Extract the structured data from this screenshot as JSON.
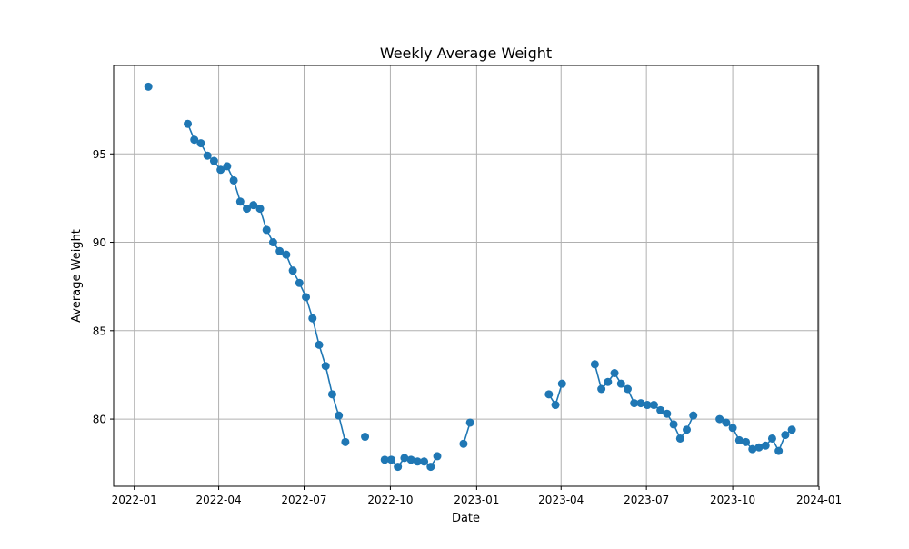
{
  "chart_data": {
    "type": "line",
    "title": "Weekly Average Weight",
    "xlabel": "Date",
    "ylabel": "Average Weight",
    "xlim": [
      "2021-12-10",
      "2023-12-31"
    ],
    "ylim": [
      76.2,
      100.0
    ],
    "x_ticks": [
      "2022-01-01",
      "2022-04-01",
      "2022-07-01",
      "2022-10-01",
      "2023-01-01",
      "2023-04-01",
      "2023-07-01",
      "2023-10-01",
      "2024-01-01"
    ],
    "x_tick_labels": [
      "2022-01",
      "2022-04",
      "2022-07",
      "2022-10",
      "2023-01",
      "2023-04",
      "2023-07",
      "2023-10",
      "2024-01"
    ],
    "y_ticks": [
      80,
      85,
      90,
      95
    ],
    "y_tick_labels": [
      "80",
      "85",
      "90",
      "95"
    ],
    "grid": true,
    "color": "#1f77b4",
    "series": [
      {
        "points": [
          [
            "2022-01-16",
            98.8
          ],
          [
            "2022-02-27",
            96.7
          ],
          [
            "2022-03-06",
            95.8
          ],
          [
            "2022-03-13",
            95.6
          ],
          [
            "2022-03-20",
            94.9
          ],
          [
            "2022-03-27",
            94.6
          ],
          [
            "2022-04-03",
            94.1
          ],
          [
            "2022-04-10",
            94.3
          ],
          [
            "2022-04-17",
            93.5
          ],
          [
            "2022-04-24",
            92.3
          ],
          [
            "2022-05-01",
            91.9
          ],
          [
            "2022-05-08",
            92.1
          ],
          [
            "2022-05-15",
            91.9
          ],
          [
            "2022-05-22",
            90.7
          ],
          [
            "2022-05-29",
            90.0
          ],
          [
            "2022-06-05",
            89.5
          ],
          [
            "2022-06-12",
            89.3
          ],
          [
            "2022-06-19",
            88.4
          ],
          [
            "2022-06-26",
            87.7
          ],
          [
            "2022-07-03",
            86.9
          ],
          [
            "2022-07-10",
            85.7
          ],
          [
            "2022-07-17",
            84.2
          ],
          [
            "2022-07-24",
            83.0
          ],
          [
            "2022-07-31",
            81.4
          ],
          [
            "2022-08-07",
            80.2
          ],
          [
            "2022-08-14",
            78.7
          ],
          [
            "2022-09-04",
            79.0
          ],
          [
            "2022-09-25",
            77.7
          ],
          [
            "2022-10-02",
            77.7
          ],
          [
            "2022-10-09",
            77.3
          ],
          [
            "2022-10-16",
            77.8
          ],
          [
            "2022-10-23",
            77.7
          ],
          [
            "2022-10-30",
            77.6
          ],
          [
            "2022-11-06",
            77.6
          ],
          [
            "2022-11-13",
            77.3
          ],
          [
            "2022-11-20",
            77.9
          ],
          [
            "2022-12-18",
            78.6
          ],
          [
            "2022-12-25",
            79.8
          ],
          [
            "2023-03-19",
            81.4
          ],
          [
            "2023-03-26",
            80.8
          ],
          [
            "2023-04-02",
            82.0
          ],
          [
            "2023-05-07",
            83.1
          ],
          [
            "2023-05-14",
            81.7
          ],
          [
            "2023-05-21",
            82.1
          ],
          [
            "2023-05-28",
            82.6
          ],
          [
            "2023-06-04",
            82.0
          ],
          [
            "2023-06-11",
            81.7
          ],
          [
            "2023-06-18",
            80.9
          ],
          [
            "2023-06-25",
            80.9
          ],
          [
            "2023-07-02",
            80.8
          ],
          [
            "2023-07-09",
            80.8
          ],
          [
            "2023-07-16",
            80.5
          ],
          [
            "2023-07-23",
            80.3
          ],
          [
            "2023-07-30",
            79.7
          ],
          [
            "2023-08-06",
            78.9
          ],
          [
            "2023-08-13",
            79.4
          ],
          [
            "2023-08-20",
            80.2
          ],
          [
            "2023-09-17",
            80.0
          ],
          [
            "2023-09-24",
            79.8
          ],
          [
            "2023-10-01",
            79.5
          ],
          [
            "2023-10-08",
            78.8
          ],
          [
            "2023-10-15",
            78.7
          ],
          [
            "2023-10-22",
            78.3
          ],
          [
            "2023-10-29",
            78.4
          ],
          [
            "2023-11-05",
            78.5
          ],
          [
            "2023-11-12",
            78.9
          ],
          [
            "2023-11-19",
            78.2
          ],
          [
            "2023-11-26",
            79.1
          ],
          [
            "2023-12-03",
            79.4
          ]
        ]
      }
    ]
  }
}
